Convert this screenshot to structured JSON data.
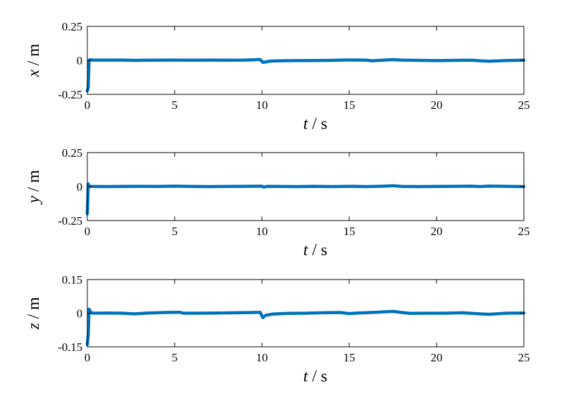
{
  "chart_data": [
    {
      "type": "line",
      "xlabel_var": "t",
      "xlabel_unit": "s",
      "ylabel_var": "x",
      "ylabel_unit": "m",
      "xlim": [
        0,
        25
      ],
      "ylim": [
        -0.25,
        0.25
      ],
      "xticks": [
        0,
        5,
        10,
        15,
        20,
        25
      ],
      "xtick_labels": [
        "0",
        "5",
        "10",
        "15",
        "20",
        "25"
      ],
      "yticks": [
        0.25,
        0,
        -0.25
      ],
      "ytick_labels": [
        "0.25",
        "0",
        "-0.25"
      ],
      "color": "#0072BD",
      "series": [
        {
          "x": [
            0,
            0.05,
            0.1,
            0.15,
            0.2,
            0.3,
            1,
            2,
            2.7,
            3.5,
            5,
            6,
            7,
            8,
            9,
            9.5,
            9.9,
            10.05,
            10.2,
            10.5,
            11,
            12,
            13,
            14,
            15,
            16,
            16.3,
            17,
            17.5,
            18,
            19,
            20,
            21,
            22,
            22.5,
            23,
            24,
            25
          ],
          "y": [
            -0.225,
            -0.2,
            0.0,
            0.005,
            0.003,
            0.002,
            0.002,
            0.002,
            0.0,
            0.001,
            0.002,
            0.001,
            0.002,
            0.001,
            0.002,
            0.004,
            0.006,
            -0.015,
            -0.012,
            -0.005,
            -0.003,
            -0.002,
            -0.001,
            0.0,
            0.003,
            0.001,
            -0.003,
            0.002,
            0.005,
            0.002,
            0.0,
            -0.002,
            0.0,
            0.001,
            -0.003,
            -0.006,
            -0.001,
            0.001
          ]
        }
      ]
    },
    {
      "type": "line",
      "xlabel_var": "t",
      "xlabel_unit": "s",
      "ylabel_var": "y",
      "ylabel_unit": "m",
      "xlim": [
        0,
        25
      ],
      "ylim": [
        -0.25,
        0.25
      ],
      "xticks": [
        0,
        5,
        10,
        15,
        20,
        25
      ],
      "xtick_labels": [
        "0",
        "5",
        "10",
        "15",
        "20",
        "25"
      ],
      "yticks": [
        0.25,
        0,
        -0.25
      ],
      "ytick_labels": [
        "0.25",
        "0",
        "-0.25"
      ],
      "color": "#0072BD",
      "series": [
        {
          "x": [
            0,
            0.05,
            0.1,
            0.15,
            0.2,
            0.3,
            1,
            2,
            3,
            4,
            5,
            6,
            7,
            8,
            9,
            10,
            10.1,
            10.3,
            11,
            12,
            13,
            14,
            15,
            16,
            17,
            17.5,
            18,
            19,
            20,
            21,
            22,
            22.5,
            23,
            24,
            25
          ],
          "y": [
            -0.2,
            0.02,
            0.005,
            0.0,
            0.002,
            0.001,
            0.0,
            0.001,
            0.002,
            0.001,
            0.003,
            0.001,
            0.0,
            0.001,
            0.002,
            0.003,
            -0.004,
            0.002,
            0.001,
            0.0,
            0.002,
            0.0,
            0.002,
            0.0,
            0.003,
            0.006,
            0.001,
            0.0,
            0.001,
            0.002,
            0.003,
            0.0,
            0.004,
            0.002,
            0.0
          ]
        }
      ]
    },
    {
      "type": "line",
      "xlabel_var": "t",
      "xlabel_unit": "s",
      "ylabel_var": "z",
      "ylabel_unit": "m",
      "xlim": [
        0,
        25
      ],
      "ylim": [
        -0.15,
        0.15
      ],
      "xticks": [
        0,
        5,
        10,
        15,
        20,
        25
      ],
      "xtick_labels": [
        "0",
        "5",
        "10",
        "15",
        "20",
        "25"
      ],
      "yticks": [
        0.15,
        0,
        -0.15
      ],
      "ytick_labels": [
        "0.15",
        "0",
        "-0.15"
      ],
      "color": "#0072BD",
      "series": [
        {
          "x": [
            0,
            0.05,
            0.1,
            0.15,
            0.2,
            0.4,
            1,
            2,
            2.7,
            3.5,
            4.5,
            5.3,
            5.5,
            6.5,
            7.5,
            8.5,
            9.5,
            9.9,
            10.05,
            10.2,
            10.6,
            11.5,
            12.5,
            13.5,
            14.5,
            15,
            15.5,
            16.5,
            17.5,
            18,
            18.5,
            19.5,
            20.5,
            21.5,
            22.5,
            23,
            24,
            25
          ],
          "y": [
            -0.14,
            -0.1,
            0.018,
            0.012,
            0.002,
            0.0,
            0.001,
            0.0,
            -0.003,
            0.001,
            0.003,
            0.004,
            0.0,
            0.0,
            0.001,
            0.002,
            0.003,
            0.004,
            -0.02,
            -0.01,
            -0.004,
            -0.001,
            0.0,
            0.002,
            0.003,
            -0.002,
            0.001,
            0.004,
            0.008,
            0.003,
            -0.001,
            0.0,
            0.0,
            0.002,
            -0.003,
            -0.005,
            0.0,
            0.001
          ]
        }
      ]
    }
  ]
}
